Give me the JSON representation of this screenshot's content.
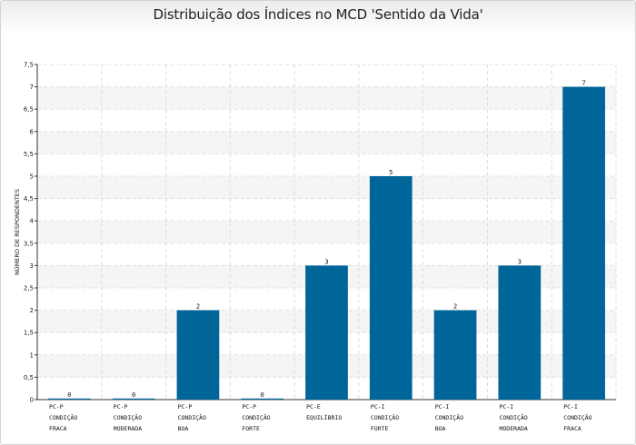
{
  "chart_data": {
    "type": "bar",
    "title": "Distribuição dos Índices no MCD 'Sentido da Vida'",
    "ylabel": "NÚMERO DE RESPONDENTES",
    "xlabel": "",
    "ylim": [
      0,
      7.5
    ],
    "yticks": [
      "0",
      "0,5",
      "1",
      "1,5",
      "2",
      "2,5",
      "3",
      "3,5",
      "4",
      "4,5",
      "5",
      "5,5",
      "6",
      "6,5",
      "7",
      "7,5"
    ],
    "categories": [
      [
        "PC-P",
        "CONDIÇÃO",
        "FRACA"
      ],
      [
        "PC-P",
        "CONDIÇÃO",
        "MODERADA"
      ],
      [
        "PC-P",
        "CONDIÇÃO",
        "BOA"
      ],
      [
        "PC-P",
        "CONDIÇÃO",
        "FORTE"
      ],
      [
        "PC-E",
        "EQUILÍBRIO"
      ],
      [
        "PC-I",
        "CONDIÇÃO",
        "FORTE"
      ],
      [
        "PC-I",
        "CONDIÇÃO",
        "BOA"
      ],
      [
        "PC-I",
        "CONDIÇÃO",
        "MODERADA"
      ],
      [
        "PC-I",
        "CONDIÇÃO",
        "FRACA"
      ]
    ],
    "values": [
      0,
      0,
      2,
      0,
      3,
      5,
      2,
      3,
      7
    ],
    "value_labels": [
      "0",
      "0",
      "2",
      "0",
      "3",
      "5",
      "2",
      "3",
      "7"
    ],
    "grid": true,
    "bar_color": "#006699"
  }
}
